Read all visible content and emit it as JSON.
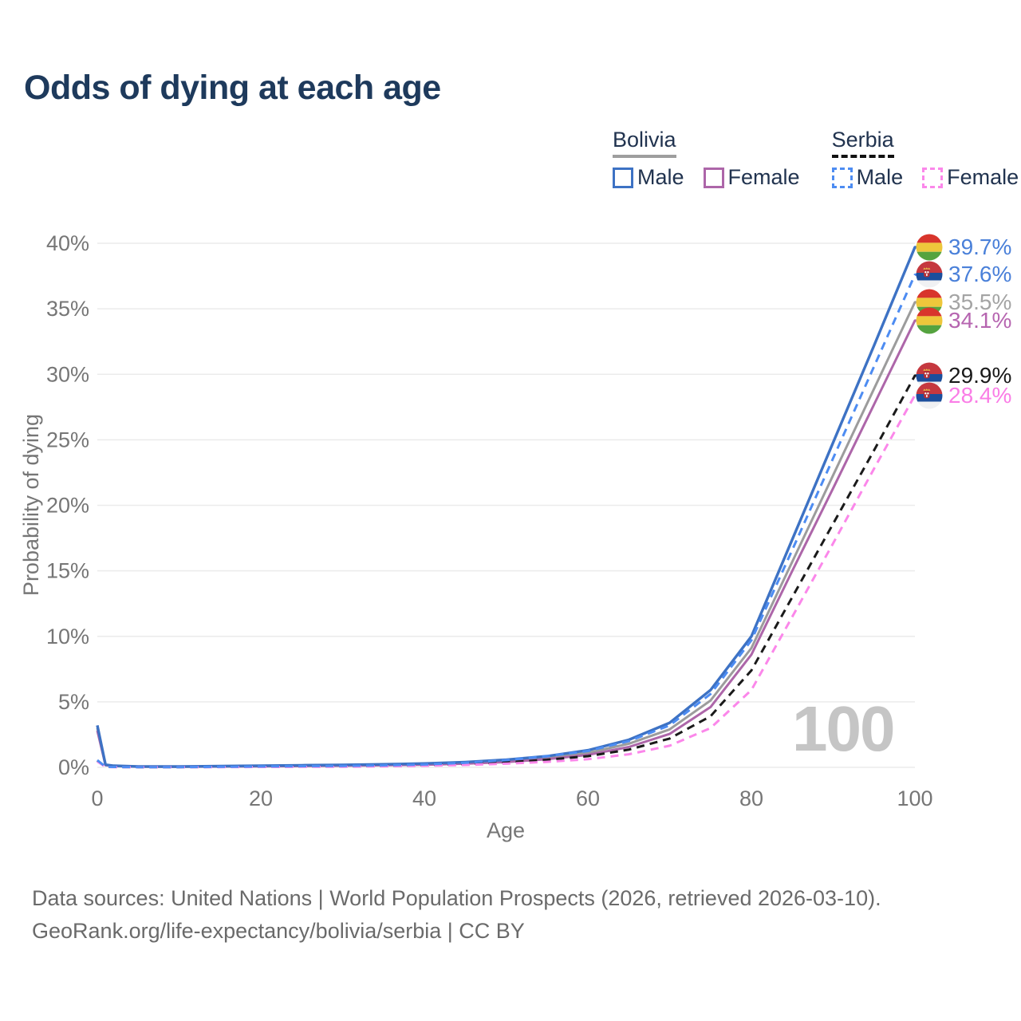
{
  "title": "Odds of dying at each age",
  "watermark": "100",
  "legend": {
    "groups": [
      {
        "country": "Bolivia",
        "key_style": "solid",
        "items": [
          {
            "label": "Male",
            "series": "bolivia-male"
          },
          {
            "label": "Female",
            "series": "bolivia-female"
          }
        ]
      },
      {
        "country": "Serbia",
        "key_style": "dashed",
        "items": [
          {
            "label": "Male",
            "series": "serbia-male"
          },
          {
            "label": "Female",
            "series": "serbia-female"
          }
        ]
      }
    ]
  },
  "footer": {
    "line1": "Data sources: United Nations | World Population Prospects (2026, retrieved 2026-03-10).",
    "line2": "GeoRank.org/life-expectancy/bolivia/serbia | CC BY"
  },
  "chart_data": {
    "type": "line",
    "title": "Odds of dying at each age",
    "xlabel": "Age",
    "ylabel": "Probability of dying",
    "xlim": [
      0,
      100
    ],
    "ylim": [
      0,
      40
    ],
    "y_unit": "%",
    "x_ticks": [
      0,
      20,
      40,
      60,
      80,
      100
    ],
    "y_ticks": [
      0,
      5,
      10,
      15,
      20,
      25,
      30,
      35,
      40
    ],
    "grid": "horizontal",
    "legend_position": "top-right",
    "ages": [
      0,
      1,
      2,
      5,
      10,
      15,
      20,
      25,
      30,
      35,
      40,
      45,
      50,
      55,
      60,
      65,
      70,
      75,
      80,
      85,
      90,
      95,
      100
    ],
    "series": [
      {
        "id": "bolivia-total",
        "name": "Bolivia (both sexes)",
        "country": "Bolivia",
        "flag": "bolivia",
        "style": "solid",
        "color": "#9c9c9c",
        "dash": "",
        "width": 3,
        "end_label": "35.5%",
        "end_value": 35.5,
        "label_color": "#a4a4a4",
        "values": [
          3.0,
          0.18,
          0.11,
          0.06,
          0.05,
          0.07,
          0.1,
          0.13,
          0.15,
          0.19,
          0.24,
          0.33,
          0.48,
          0.72,
          1.1,
          1.8,
          2.9,
          5.1,
          9.1,
          15.7,
          22.3,
          28.9,
          35.5
        ]
      },
      {
        "id": "bolivia-female",
        "name": "Bolivia Female",
        "country": "Bolivia",
        "flag": "bolivia",
        "style": "solid",
        "color": "#ad66a9",
        "dash": "",
        "width": 3,
        "end_label": "34.1%",
        "end_value": 34.1,
        "label_color": "#b665b0",
        "values": [
          2.8,
          0.16,
          0.1,
          0.05,
          0.05,
          0.06,
          0.08,
          0.1,
          0.12,
          0.16,
          0.2,
          0.28,
          0.4,
          0.62,
          0.95,
          1.55,
          2.55,
          4.6,
          8.6,
          15.0,
          21.3,
          27.7,
          34.1
        ]
      },
      {
        "id": "bolivia-male",
        "name": "Bolivia Male",
        "country": "Bolivia",
        "flag": "bolivia",
        "style": "solid",
        "color": "#3d72c4",
        "dash": "",
        "width": 3.4,
        "end_label": "39.7%",
        "end_value": 39.7,
        "label_color": "#4a80d9",
        "values": [
          3.2,
          0.2,
          0.12,
          0.07,
          0.06,
          0.09,
          0.13,
          0.16,
          0.19,
          0.23,
          0.29,
          0.4,
          0.58,
          0.85,
          1.3,
          2.1,
          3.4,
          5.9,
          10.0,
          17.4,
          24.8,
          32.2,
          39.7
        ]
      },
      {
        "id": "serbia-total",
        "name": "Serbia (both sexes)",
        "country": "Serbia",
        "flag": "serbia",
        "style": "dashed",
        "color": "#1a1a1a",
        "dash": "10 7",
        "width": 3,
        "end_label": "29.9%",
        "end_value": 29.9,
        "label_color": "#191919",
        "values": [
          0.5,
          0.04,
          0.03,
          0.02,
          0.02,
          0.03,
          0.05,
          0.06,
          0.08,
          0.11,
          0.16,
          0.24,
          0.38,
          0.58,
          0.85,
          1.35,
          2.2,
          3.9,
          7.4,
          13.0,
          18.6,
          24.2,
          29.9
        ]
      },
      {
        "id": "serbia-female",
        "name": "Serbia Female",
        "country": "Serbia",
        "flag": "serbia",
        "style": "dashed",
        "color": "#fb87ea",
        "dash": "10 7",
        "width": 3,
        "end_label": "28.4%",
        "end_value": 28.4,
        "label_color": "#fa7de6",
        "values": [
          0.45,
          0.03,
          0.02,
          0.02,
          0.02,
          0.02,
          0.03,
          0.04,
          0.05,
          0.08,
          0.12,
          0.18,
          0.28,
          0.42,
          0.62,
          1.0,
          1.65,
          3.0,
          5.9,
          11.5,
          17.1,
          22.8,
          28.4
        ]
      },
      {
        "id": "serbia-male",
        "name": "Serbia Male",
        "country": "Serbia",
        "flag": "serbia",
        "style": "dashed",
        "color": "#4d8cf2",
        "dash": "10 7",
        "width": 3,
        "end_label": "37.6%",
        "end_value": 37.6,
        "label_color": "#4a80d9",
        "values": [
          0.55,
          0.04,
          0.03,
          0.02,
          0.02,
          0.04,
          0.07,
          0.09,
          0.11,
          0.15,
          0.22,
          0.35,
          0.55,
          0.85,
          1.25,
          2.0,
          3.2,
          5.6,
          9.7,
          16.6,
          23.6,
          30.6,
          37.6
        ]
      }
    ]
  }
}
